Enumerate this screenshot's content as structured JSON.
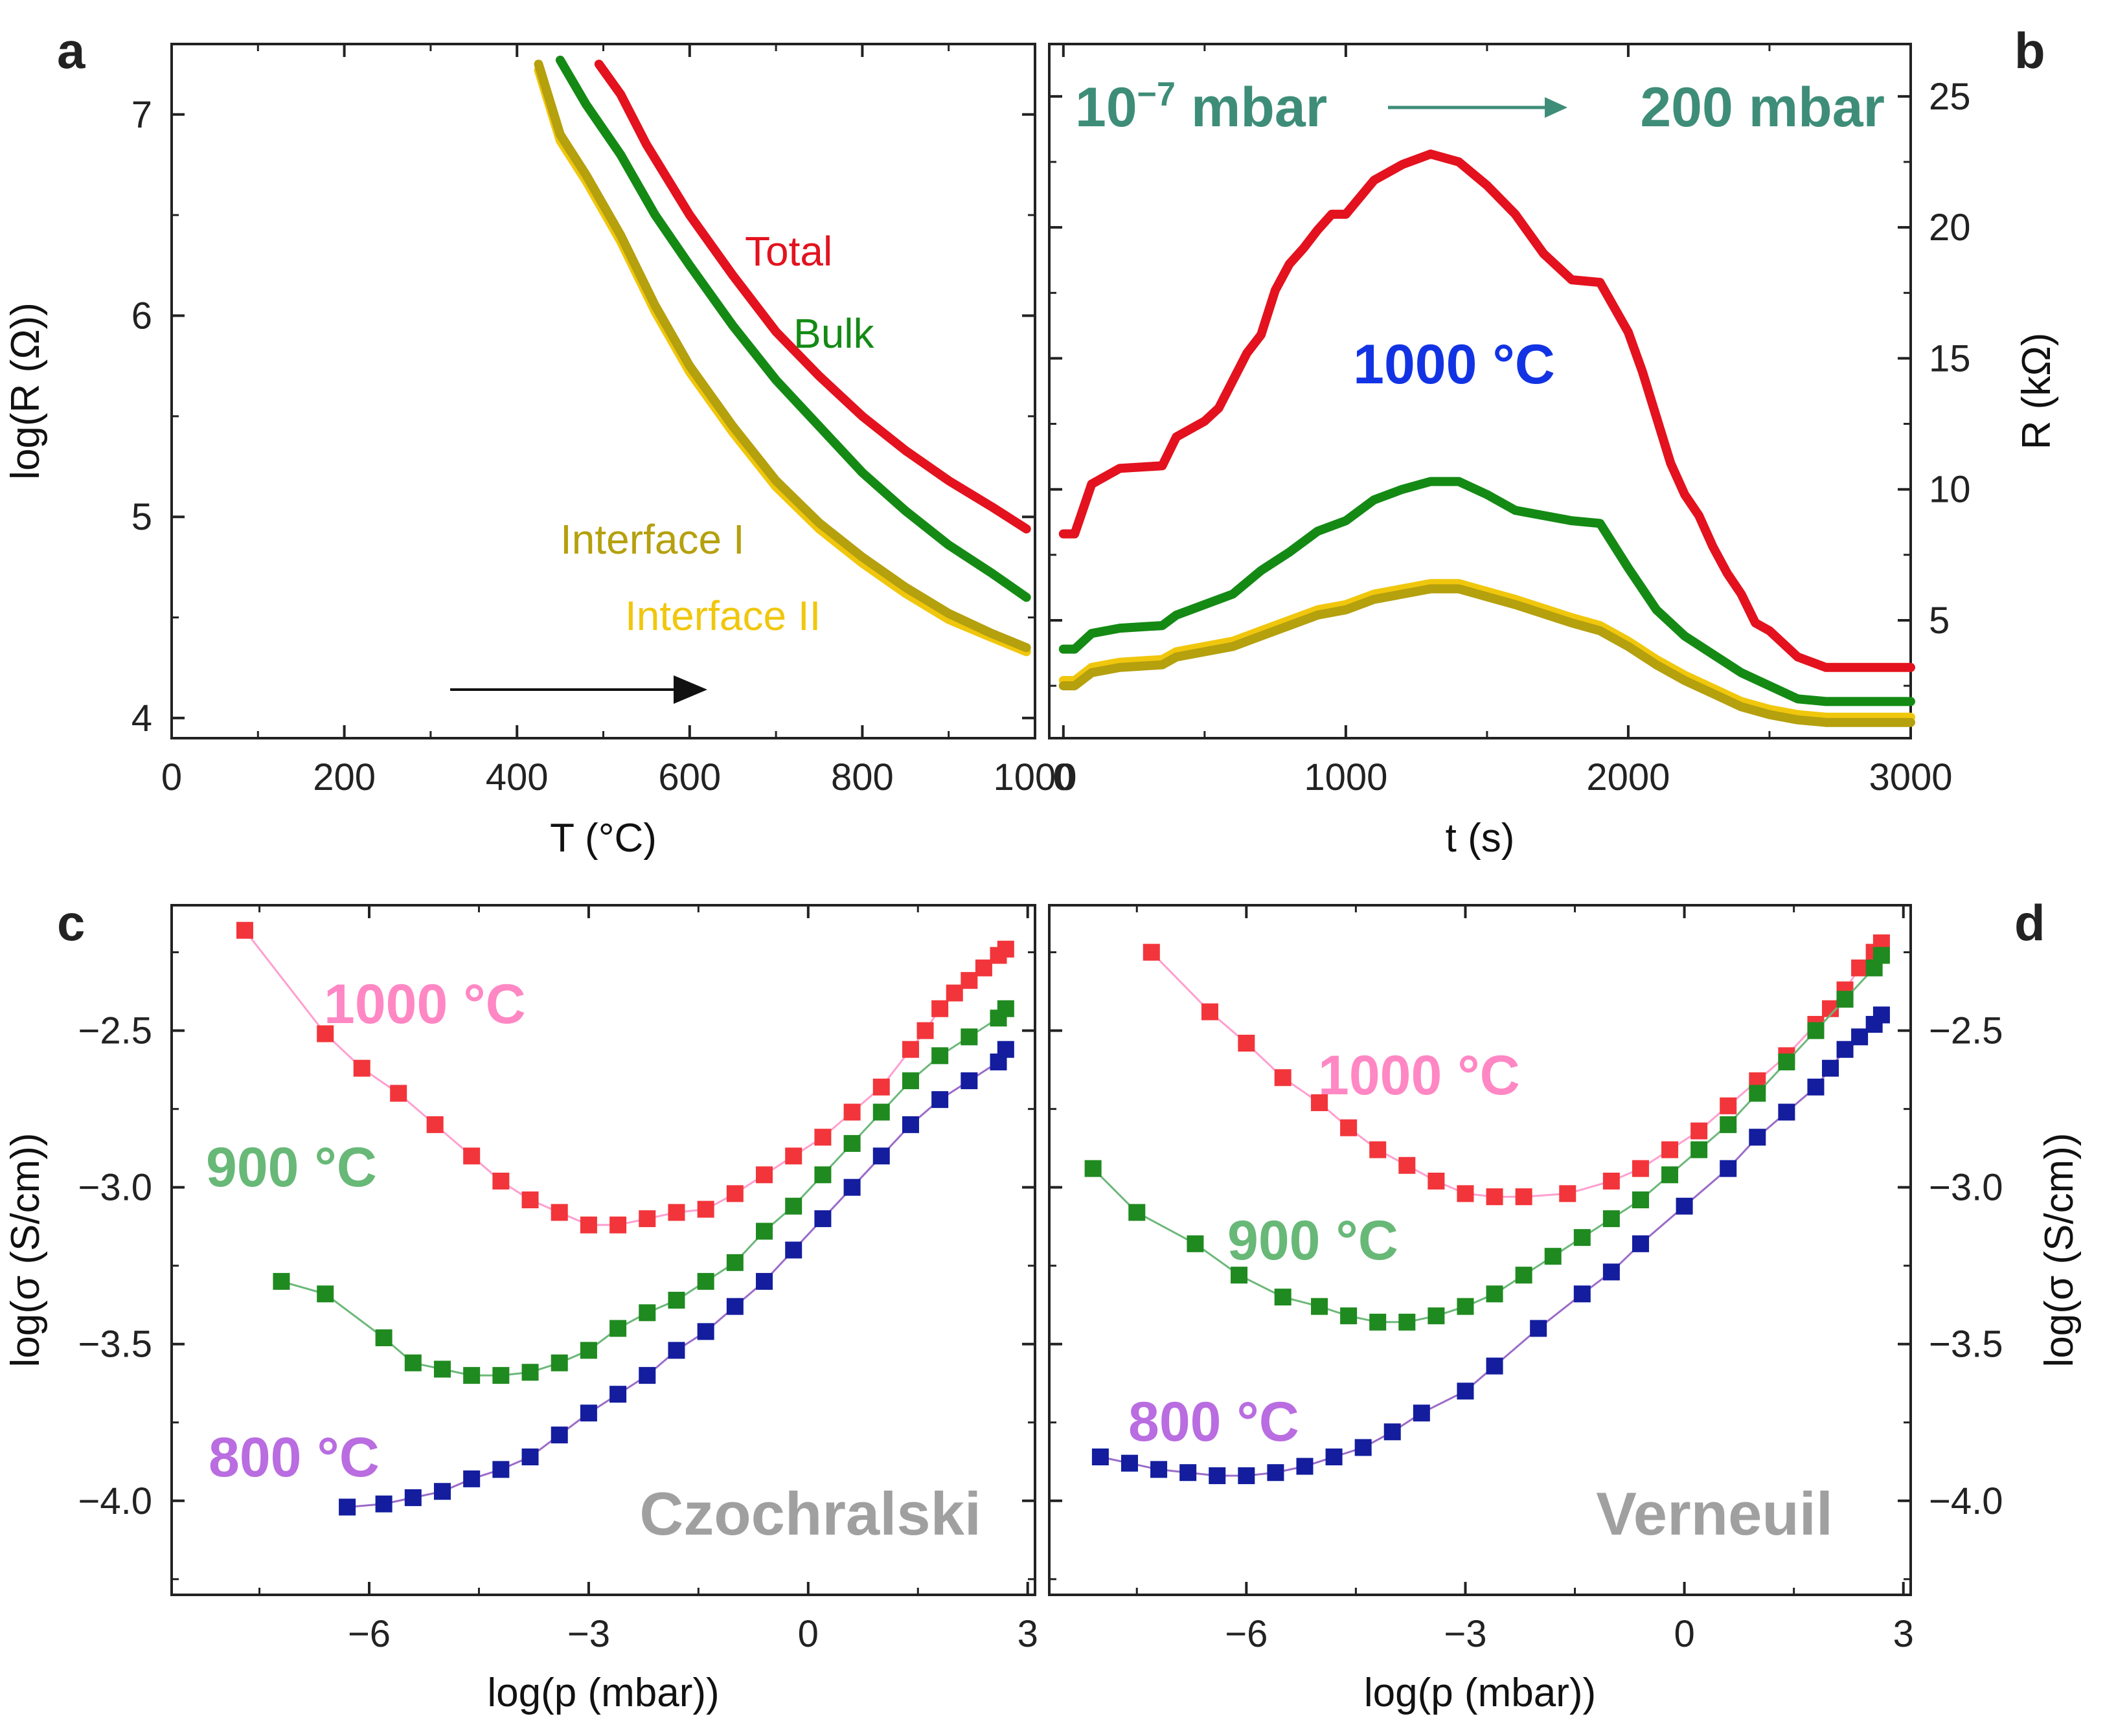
{
  "panel_labels": {
    "a": "a",
    "b": "b",
    "c": "c",
    "d": "d"
  },
  "colors": {
    "total": "#e3121e",
    "bulk": "#148a14",
    "interface1": "#b5a00e",
    "interface2": "#f0c70c",
    "teal": "#3e8d78",
    "blue_text": "#1233e4",
    "pink": "#ff87c4",
    "green_text": "#68b878",
    "violet": "#b96de0",
    "gray": "#a0a0a0",
    "red_sq": "#f2353a",
    "green_sq": "#1f8a1f",
    "navy_sq": "#131d9e"
  },
  "chart_data": [
    {
      "panel": "a",
      "type": "line",
      "xlabel": "T (°C)",
      "ylabel": "log(R (Ω))",
      "xlim": [
        0,
        1000
      ],
      "ylim": [
        3.9,
        7.35
      ],
      "xticks": [
        0,
        200,
        400,
        600,
        800,
        1000
      ],
      "yticks": [
        4,
        5,
        6,
        7
      ],
      "series": [
        {
          "name": "Total",
          "color": "#e3121e",
          "x": [
            495,
            520,
            550,
            600,
            650,
            700,
            750,
            800,
            850,
            900,
            950,
            990
          ],
          "y": [
            7.25,
            7.1,
            6.85,
            6.5,
            6.2,
            5.92,
            5.7,
            5.5,
            5.33,
            5.18,
            5.05,
            4.94
          ]
        },
        {
          "name": "Bulk",
          "color": "#148a14",
          "x": [
            450,
            480,
            520,
            560,
            600,
            650,
            700,
            750,
            800,
            850,
            900,
            950,
            990
          ],
          "y": [
            7.27,
            7.05,
            6.8,
            6.5,
            6.25,
            5.95,
            5.68,
            5.45,
            5.22,
            5.03,
            4.86,
            4.72,
            4.6
          ]
        },
        {
          "name": "Interface I",
          "color": "#b5a00e",
          "x": [
            425,
            450,
            480,
            520,
            560,
            600,
            650,
            700,
            750,
            800,
            850,
            900,
            950,
            990
          ],
          "y": [
            7.25,
            6.9,
            6.7,
            6.4,
            6.05,
            5.75,
            5.45,
            5.18,
            4.97,
            4.8,
            4.65,
            4.52,
            4.42,
            4.35
          ]
        },
        {
          "name": "Interface II",
          "color": "#f0c70c",
          "x": [
            425,
            450,
            480,
            520,
            560,
            600,
            650,
            700,
            750,
            800,
            850,
            900,
            950,
            990
          ],
          "y": [
            7.22,
            6.87,
            6.67,
            6.37,
            6.02,
            5.72,
            5.42,
            5.15,
            4.94,
            4.77,
            4.62,
            4.49,
            4.4,
            4.33
          ]
        }
      ],
      "annotations": [
        "Total",
        "Bulk",
        "Interface I",
        "Interface II"
      ]
    },
    {
      "panel": "b",
      "type": "line",
      "xlabel": "t (s)",
      "ylabel": "R (kΩ)",
      "xlim": [
        -50,
        3000
      ],
      "ylim": [
        0.5,
        27
      ],
      "xticks": [
        0,
        1000,
        2000,
        3000
      ],
      "yticks": [
        5,
        10,
        15,
        20,
        25
      ],
      "title_left": "10",
      "title_exp": "−7",
      "title_left_unit": " mbar",
      "title_right": "200 mbar",
      "annotation": "1000 °C",
      "series": [
        {
          "name": "Total",
          "color": "#e3121e",
          "x": [
            0,
            40,
            100,
            200,
            350,
            400,
            500,
            550,
            650,
            700,
            750,
            800,
            850,
            900,
            950,
            1000,
            1100,
            1200,
            1300,
            1400,
            1500,
            1600,
            1700,
            1800,
            1900,
            2000,
            2050,
            2150,
            2200,
            2250,
            2300,
            2350,
            2400,
            2450,
            2500,
            2600,
            2700,
            2850,
            3000
          ],
          "y": [
            8.3,
            8.3,
            10.2,
            10.8,
            10.9,
            12,
            12.6,
            13.1,
            15.2,
            15.9,
            17.6,
            18.6,
            19.2,
            19.9,
            20.5,
            20.5,
            21.8,
            22.4,
            22.8,
            22.5,
            21.6,
            20.5,
            19,
            18,
            17.9,
            16,
            14.5,
            11,
            9.8,
            9,
            7.8,
            6.8,
            6,
            4.9,
            4.6,
            3.6,
            3.2,
            3.2,
            3.2
          ]
        },
        {
          "name": "Bulk",
          "color": "#148a14",
          "x": [
            0,
            40,
            100,
            200,
            350,
            400,
            500,
            600,
            700,
            800,
            900,
            1000,
            1100,
            1200,
            1300,
            1400,
            1500,
            1600,
            1800,
            1900,
            2000,
            2100,
            2200,
            2300,
            2400,
            2500,
            2600,
            2700,
            3000
          ],
          "y": [
            3.9,
            3.9,
            4.5,
            4.7,
            4.8,
            5.2,
            5.6,
            6,
            6.9,
            7.6,
            8.4,
            8.8,
            9.6,
            10,
            10.3,
            10.3,
            9.8,
            9.2,
            8.8,
            8.7,
            7,
            5.4,
            4.4,
            3.7,
            3,
            2.5,
            2,
            1.9,
            1.9
          ]
        },
        {
          "name": "Interface I",
          "color": "#b5a00e",
          "x": [
            0,
            40,
            100,
            200,
            350,
            400,
            500,
            600,
            700,
            800,
            900,
            1000,
            1100,
            1200,
            1300,
            1400,
            1500,
            1600,
            1800,
            1900,
            2000,
            2100,
            2200,
            2300,
            2400,
            2500,
            2600,
            2700,
            3000
          ],
          "y": [
            2.5,
            2.5,
            3,
            3.2,
            3.3,
            3.6,
            3.8,
            4,
            4.4,
            4.8,
            5.2,
            5.4,
            5.8,
            6,
            6.2,
            6.2,
            5.9,
            5.6,
            4.9,
            4.6,
            4,
            3.3,
            2.7,
            2.2,
            1.7,
            1.4,
            1.2,
            1.1,
            1.1
          ]
        },
        {
          "name": "Interface II",
          "color": "#f0c70c",
          "x": [
            0,
            40,
            100,
            200,
            350,
            400,
            500,
            600,
            700,
            800,
            900,
            1000,
            1100,
            1200,
            1300,
            1400,
            1500,
            1600,
            1800,
            1900,
            2000,
            2100,
            2200,
            2300,
            2400,
            2500,
            2600,
            2700,
            3000
          ],
          "y": [
            2.7,
            2.7,
            3.2,
            3.4,
            3.5,
            3.8,
            4,
            4.2,
            4.6,
            5,
            5.4,
            5.6,
            6,
            6.2,
            6.4,
            6.4,
            6.1,
            5.8,
            5.1,
            4.8,
            4.2,
            3.5,
            2.9,
            2.4,
            1.9,
            1.6,
            1.4,
            1.3,
            1.3
          ]
        }
      ]
    },
    {
      "panel": "c",
      "type": "scatter",
      "xlabel": "log(p (mbar))",
      "ylabel": "log(σ (S/cm))",
      "xlim": [
        -8.7,
        3.1
      ],
      "ylim": [
        -4.3,
        -2.1
      ],
      "xticks": [
        -6,
        -3,
        0,
        3
      ],
      "yticks": [
        -4.0,
        -3.5,
        -3.0,
        -2.5
      ],
      "ytick_labels": [
        "−4.0",
        "−3.5",
        "−3.0",
        "−2.5"
      ],
      "xtick_labels": [
        "−6",
        "−3",
        "0",
        "3"
      ],
      "label": "Czochralski",
      "series": [
        {
          "name": "1000 °C",
          "label_color": "#ff87c4",
          "color": "#f2353a",
          "x": [
            -7.7,
            -6.6,
            -6.1,
            -5.6,
            -5.1,
            -4.6,
            -4.2,
            -3.8,
            -3.4,
            -3,
            -2.6,
            -2.2,
            -1.8,
            -1.4,
            -1,
            -0.6,
            -0.2,
            0.2,
            0.6,
            1,
            1.4,
            1.6,
            1.8,
            2,
            2.2,
            2.4,
            2.6,
            2.7
          ],
          "y": [
            -2.18,
            -2.51,
            -2.62,
            -2.7,
            -2.8,
            -2.9,
            -2.98,
            -3.04,
            -3.08,
            -3.12,
            -3.12,
            -3.1,
            -3.08,
            -3.07,
            -3.02,
            -2.96,
            -2.9,
            -2.84,
            -2.76,
            -2.68,
            -2.56,
            -2.5,
            -2.43,
            -2.38,
            -2.34,
            -2.3,
            -2.26,
            -2.24
          ]
        },
        {
          "name": "900 °C",
          "label_color": "#68b878",
          "color": "#1f8a1f",
          "x": [
            -7.2,
            -6.6,
            -5.8,
            -5.4,
            -5,
            -4.6,
            -4.2,
            -3.8,
            -3.4,
            -3,
            -2.6,
            -2.2,
            -1.8,
            -1.4,
            -1,
            -0.6,
            -0.2,
            0.2,
            0.6,
            1,
            1.4,
            1.8,
            2.2,
            2.6,
            2.7
          ],
          "y": [
            -3.3,
            -3.34,
            -3.48,
            -3.56,
            -3.58,
            -3.6,
            -3.6,
            -3.59,
            -3.56,
            -3.52,
            -3.45,
            -3.4,
            -3.36,
            -3.3,
            -3.24,
            -3.14,
            -3.06,
            -2.96,
            -2.86,
            -2.76,
            -2.66,
            -2.58,
            -2.52,
            -2.46,
            -2.43
          ]
        },
        {
          "name": "800 °C",
          "label_color": "#b96de0",
          "color": "#131d9e",
          "x": [
            -6.3,
            -5.8,
            -5.4,
            -5,
            -4.6,
            -4.2,
            -3.8,
            -3.4,
            -3,
            -2.6,
            -2.2,
            -1.8,
            -1.4,
            -1,
            -0.6,
            -0.2,
            0.2,
            0.6,
            1,
            1.4,
            1.8,
            2.2,
            2.6,
            2.7
          ],
          "y": [
            -4.02,
            -4.01,
            -3.99,
            -3.97,
            -3.93,
            -3.9,
            -3.86,
            -3.79,
            -3.72,
            -3.66,
            -3.6,
            -3.52,
            -3.46,
            -3.38,
            -3.3,
            -3.2,
            -3.1,
            -3,
            -2.9,
            -2.8,
            -2.72,
            -2.66,
            -2.6,
            -2.56
          ]
        }
      ]
    },
    {
      "panel": "d",
      "type": "scatter",
      "xlabel": "log(p (mbar))",
      "ylabel": "log(σ (S/cm))",
      "xlim": [
        -8.7,
        3.1
      ],
      "ylim": [
        -4.3,
        -2.1
      ],
      "xticks": [
        -6,
        -3,
        0,
        3
      ],
      "yticks": [
        -4.0,
        -3.5,
        -3.0,
        -2.5
      ],
      "ytick_labels": [
        "−4.0",
        "−3.5",
        "−3.0",
        "−2.5"
      ],
      "xtick_labels": [
        "−6",
        "−3",
        "0",
        "3"
      ],
      "label": "Verneuil",
      "series": [
        {
          "name": "1000 °C",
          "label_color": "#ff87c4",
          "color": "#f2353a",
          "x": [
            -7.3,
            -6.5,
            -6,
            -5.5,
            -5,
            -4.6,
            -4.2,
            -3.8,
            -3.4,
            -3,
            -2.6,
            -2.2,
            -1.6,
            -1,
            -0.6,
            -0.2,
            0.2,
            0.6,
            1,
            1.4,
            1.8,
            2,
            2.2,
            2.4,
            2.6,
            2.7
          ],
          "y": [
            -2.25,
            -2.44,
            -2.54,
            -2.65,
            -2.73,
            -2.81,
            -2.88,
            -2.93,
            -2.98,
            -3.02,
            -3.03,
            -3.03,
            -3.02,
            -2.98,
            -2.94,
            -2.88,
            -2.82,
            -2.74,
            -2.66,
            -2.58,
            -2.48,
            -2.43,
            -2.37,
            -2.3,
            -2.25,
            -2.22
          ]
        },
        {
          "name": "900 °C",
          "label_color": "#68b878",
          "color": "#1f8a1f",
          "x": [
            -8.1,
            -7.5,
            -6.7,
            -6.1,
            -5.5,
            -5,
            -4.6,
            -4.2,
            -3.8,
            -3.4,
            -3,
            -2.6,
            -2.2,
            -1.8,
            -1.4,
            -1,
            -0.6,
            -0.2,
            0.2,
            0.6,
            1,
            1.4,
            1.8,
            2.2,
            2.6,
            2.7
          ],
          "y": [
            -2.94,
            -3.08,
            -3.18,
            -3.28,
            -3.35,
            -3.38,
            -3.41,
            -3.43,
            -3.43,
            -3.41,
            -3.38,
            -3.34,
            -3.28,
            -3.22,
            -3.16,
            -3.1,
            -3.04,
            -2.96,
            -2.88,
            -2.8,
            -2.7,
            -2.6,
            -2.5,
            -2.4,
            -2.3,
            -2.26
          ]
        },
        {
          "name": "800 °C",
          "label_color": "#b96de0",
          "color": "#131d9e",
          "x": [
            -8,
            -7.6,
            -7.2,
            -6.8,
            -6.4,
            -6,
            -5.6,
            -5.2,
            -4.8,
            -4.4,
            -4,
            -3.6,
            -3,
            -2.6,
            -2,
            -1.4,
            -1,
            -0.6,
            0,
            0.6,
            1,
            1.4,
            1.8,
            2,
            2.2,
            2.4,
            2.6,
            2.7
          ],
          "y": [
            -3.86,
            -3.88,
            -3.9,
            -3.91,
            -3.92,
            -3.92,
            -3.91,
            -3.89,
            -3.86,
            -3.83,
            -3.78,
            -3.72,
            -3.65,
            -3.57,
            -3.45,
            -3.34,
            -3.27,
            -3.18,
            -3.06,
            -2.94,
            -2.84,
            -2.76,
            -2.68,
            -2.62,
            -2.56,
            -2.52,
            -2.48,
            -2.45
          ]
        }
      ]
    }
  ]
}
